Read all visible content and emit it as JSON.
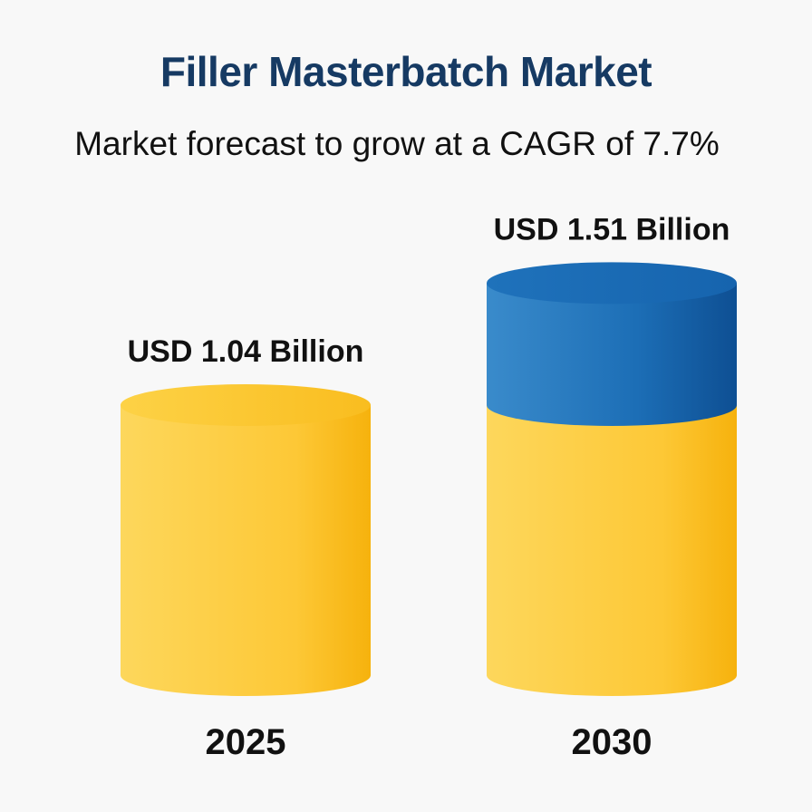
{
  "title": "Filler Masterbatch Market",
  "subtitle": "Market forecast to grow at a CAGR of 7.7%",
  "chart_data": {
    "type": "bar",
    "style": "3d-cylinder",
    "categories": [
      "2025",
      "2030"
    ],
    "values": [
      1.04,
      1.51
    ],
    "value_labels": [
      "USD 1.04 Billion",
      "USD 1.51 Billion"
    ],
    "unit": "USD Billion",
    "growth_segment_color": "#1b6fb8",
    "base_color": "#fdc82f",
    "title": "Filler Masterbatch Market",
    "subtitle": "Market forecast to grow at a CAGR of 7.7%"
  }
}
